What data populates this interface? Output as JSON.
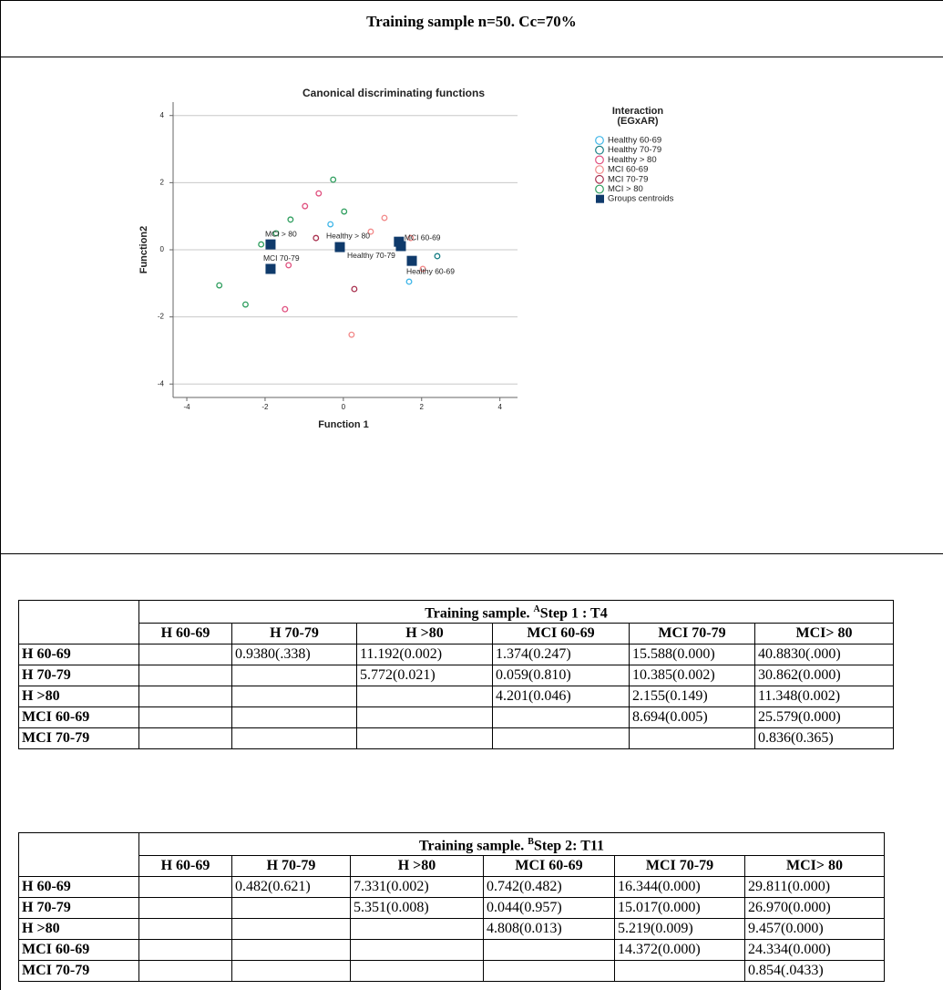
{
  "header": {
    "title": "Training sample n=50. Cc=70%"
  },
  "chart_data": {
    "type": "scatter",
    "title": "Canonical discriminating functions",
    "x_label": "Function 1",
    "y_label": "Function2",
    "legend_title": [
      "Interaction",
      "(EGxAR)"
    ],
    "xlim": [
      -4.35,
      4.45
    ],
    "ylim": [
      -4.4,
      4.4
    ],
    "xticks": [
      -4,
      -2,
      0,
      2,
      4
    ],
    "yticks": [
      -4,
      -2,
      0,
      2,
      4
    ],
    "grid": true,
    "series": [
      {
        "name": "Healthy 60-69",
        "color": "#3fb6e8",
        "marker": "circle",
        "x": [
          -0.33,
          1.68
        ],
        "y": [
          0.76,
          -0.95
        ]
      },
      {
        "name": "Healthy 70-79",
        "color": "#1b7f86",
        "marker": "circle",
        "x": [
          2.4,
          1.5
        ],
        "y": [
          -0.19,
          0.1
        ]
      },
      {
        "name": "Healthy > 80",
        "color": "#e0507f",
        "marker": "circle",
        "x": [
          -1.4,
          -0.98,
          -0.63,
          -1.49
        ],
        "y": [
          -0.46,
          1.3,
          1.68,
          -1.77
        ]
      },
      {
        "name": "MCI 60-69",
        "color": "#f28a8a",
        "marker": "circle",
        "x": [
          0.7,
          1.05,
          1.72,
          2.03,
          0.21
        ],
        "y": [
          0.54,
          0.95,
          0.35,
          -0.57,
          -2.53
        ]
      },
      {
        "name": "MCI 70-79",
        "color": "#a8304e",
        "marker": "circle",
        "x": [
          -0.7,
          0.28
        ],
        "y": [
          0.35,
          -1.17
        ]
      },
      {
        "name": "MCI > 80",
        "color": "#2e9e5e",
        "marker": "circle",
        "x": [
          -0.26,
          0.02,
          -1.35,
          -1.72,
          -2.1,
          -3.17,
          -2.5
        ],
        "y": [
          2.09,
          1.14,
          0.9,
          0.49,
          0.16,
          -1.06,
          -1.63
        ]
      },
      {
        "name": "Groups centroids",
        "color": "#0f3a6b",
        "marker": "square",
        "x": [
          -1.86,
          -1.86,
          -0.09,
          1.42,
          1.47,
          1.75
        ],
        "y": [
          0.16,
          -0.57,
          0.08,
          0.24,
          0.11,
          -0.33
        ],
        "labels": [
          "MCI > 80",
          "MCI 70-79",
          "Healthy > 80",
          "MCI 60-69",
          "Healthy 70-79",
          "Healthy 60-69"
        ]
      }
    ]
  },
  "tables": [
    {
      "title": {
        "pre": "Training sample. ",
        "sup": "A",
        "post": "Step 1 : T4"
      },
      "columns": [
        "H 60-69",
        "H 70-79",
        "H >80",
        "MCI 60-69",
        "MCI 70-79",
        "MCI> 80"
      ],
      "rows": [
        {
          "label": "H 60-69",
          "cells": [
            null,
            "0.9380(.338)",
            "11.192(0.002)",
            "1.374(0.247)",
            "15.588(0.000)",
            "40.8830(.000)"
          ]
        },
        {
          "label": "H 70-79",
          "cells": [
            null,
            null,
            "5.772(0.021)",
            "0.059(0.810)",
            "10.385(0.002)",
            "30.862(0.000)"
          ]
        },
        {
          "label": "H >80",
          "cells": [
            null,
            null,
            null,
            "4.201(0.046)",
            "2.155(0.149)",
            "11.348(0.002)"
          ]
        },
        {
          "label": "MCI 60-69",
          "cells": [
            null,
            null,
            null,
            null,
            "8.694(0.005)",
            "25.579(0.000)"
          ]
        },
        {
          "label": "MCI 70-79",
          "cells": [
            null,
            null,
            null,
            null,
            null,
            "0.836(0.365)"
          ]
        }
      ]
    },
    {
      "title": {
        "pre": "Training sample. ",
        "sup": "B",
        "post": "Step 2: T11"
      },
      "columns": [
        "H 60-69",
        "H 70-79",
        "H >80",
        "MCI 60-69",
        "MCI 70-79",
        "MCI> 80"
      ],
      "rows": [
        {
          "label": "H 60-69",
          "cells": [
            null,
            "0.482(0.621)",
            "7.331(0.002)",
            "0.742(0.482)",
            "16.344(0.000)",
            "29.811(0.000)"
          ]
        },
        {
          "label": "H 70-79",
          "cells": [
            null,
            null,
            "5.351(0.008)",
            "0.044(0.957)",
            "15.017(0.000)",
            "26.970(0.000)"
          ]
        },
        {
          "label": "H >80",
          "cells": [
            null,
            null,
            null,
            "4.808(0.013)",
            "5.219(0.009)",
            "9.457(0.000)"
          ]
        },
        {
          "label": "MCI 60-69",
          "cells": [
            null,
            null,
            null,
            null,
            "14.372(0.000)",
            "24.334(0.000)"
          ]
        },
        {
          "label": "MCI 70-79",
          "cells": [
            null,
            null,
            null,
            null,
            null,
            "0.854(.0433)"
          ]
        }
      ]
    }
  ]
}
